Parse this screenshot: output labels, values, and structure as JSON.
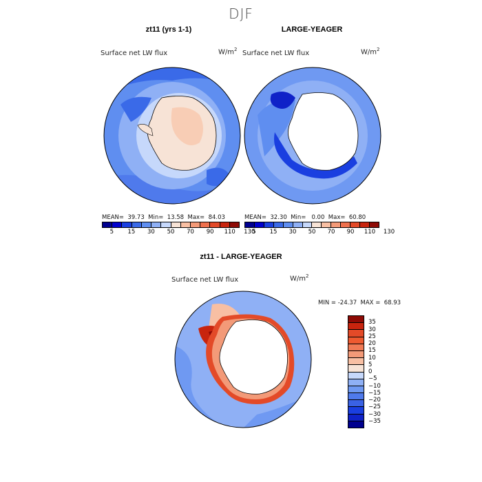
{
  "season": "DJF",
  "panels": {
    "left": {
      "title": "zt11 (yrs 1-1)",
      "variable": "Surface net LW flux",
      "units_base": "W/m",
      "units_exp": "2",
      "stats": "MEAN=  39.73  Min=  13.58  Max=  84.03"
    },
    "right": {
      "title": "LARGE-YEAGER",
      "variable": "Surface net LW flux",
      "units_base": "W/m",
      "units_exp": "2",
      "stats": "MEAN=  32.30  Min=   0.00  Max=  60.80"
    },
    "bottom": {
      "title": "zt11 - LARGE-YEAGER",
      "variable": "Surface net LW flux",
      "units_base": "W/m",
      "units_exp": "2",
      "stats": "MIN = -24.37  MAX =  68.93"
    }
  },
  "colorbar_abs": {
    "colors": [
      "#00008f",
      "#0000cc",
      "#1a3fe0",
      "#3a6ae8",
      "#5f8ef0",
      "#8fb0f5",
      "#c6d8fb",
      "#f7e3d6",
      "#f8bfa3",
      "#f39a78",
      "#ee704d",
      "#e34a28",
      "#c8240e",
      "#8e0a05"
    ],
    "labels": [
      "5",
      "15",
      "30",
      "50",
      "70",
      "90",
      "110",
      "130"
    ]
  },
  "colorbar_diff": {
    "colors": [
      "#8e0a05",
      "#c8240e",
      "#e34a28",
      "#ee5a30",
      "#f07a55",
      "#f39a78",
      "#f8bfa3",
      "#f7e3d6",
      "#c6d8fb",
      "#8fb0f5",
      "#6f99f2",
      "#4f7aec",
      "#3a62e4",
      "#1a3fe0",
      "#0f22c8",
      "#00008f"
    ],
    "labels": [
      "35",
      "30",
      "25",
      "20",
      "15",
      "10",
      "5",
      "0",
      "−5",
      "−10",
      "−15",
      "−20",
      "−25",
      "−30",
      "−35"
    ]
  }
}
